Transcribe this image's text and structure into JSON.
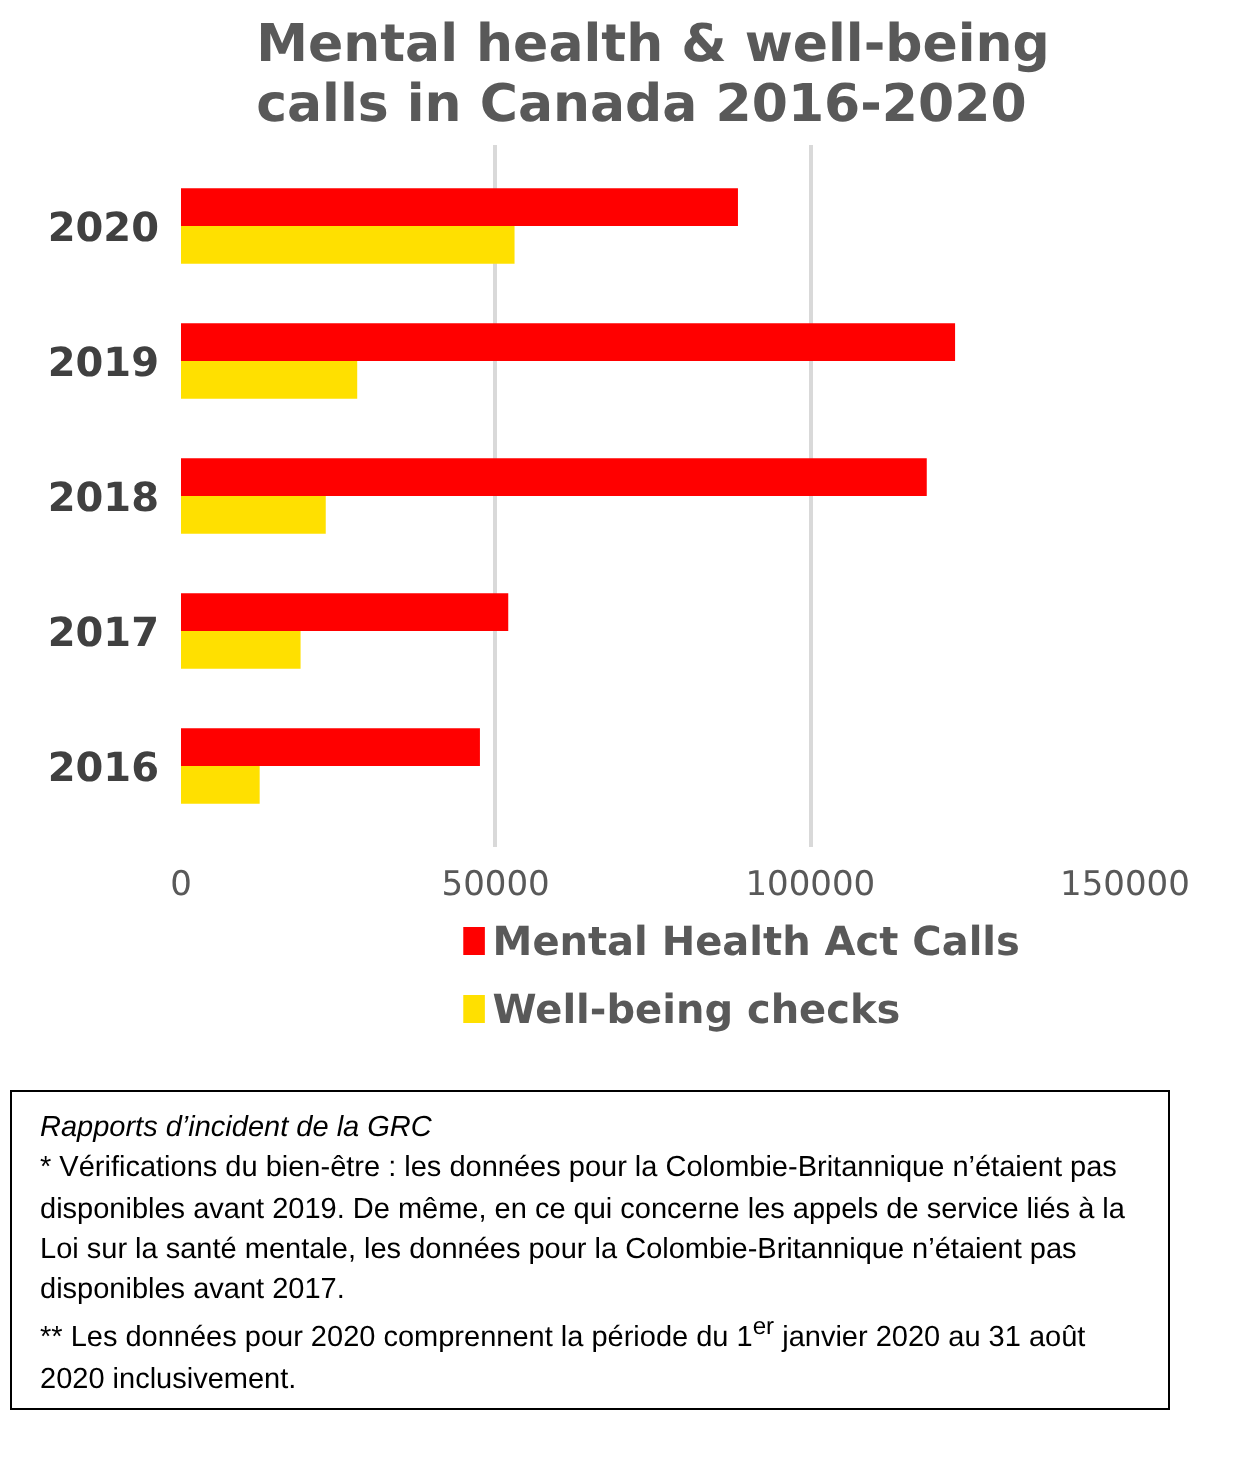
{
  "chart_data": {
    "type": "bar",
    "orientation": "horizontal",
    "title": "Mental health & well-being\ncalls in Canada 2016-2020",
    "categories": [
      "2020",
      "2019",
      "2018",
      "2017",
      "2016"
    ],
    "series": [
      {
        "name": "Mental Health Act Calls",
        "color": "#ff0000",
        "values": [
          88500,
          123000,
          118500,
          52000,
          47500
        ]
      },
      {
        "name": "Well-being checks",
        "color": "#ffe000",
        "values": [
          53000,
          28000,
          23000,
          19000,
          12500
        ]
      }
    ],
    "xlim": [
      0,
      150000
    ],
    "xticks": [
      0,
      50000,
      100000,
      150000
    ],
    "grid": "x",
    "legend": "bottom",
    "annotations": [
      "Rapports d’incident de la GRC",
      "* Vérifications du bien-être : les données pour la Colombie-Britannique n’étaient pas disponibles avant 2019. De même, en ce qui concerne les appels de service liés à la Loi sur la santé mentale, les données pour la Colombie-Britannique n’étaient pas disponibles avant 2017.",
      "** Les données pour 2020 comprennent la période du 1$^{er}$ janvier 2020 au 31 août 2020 inclusivement."
    ]
  }
}
